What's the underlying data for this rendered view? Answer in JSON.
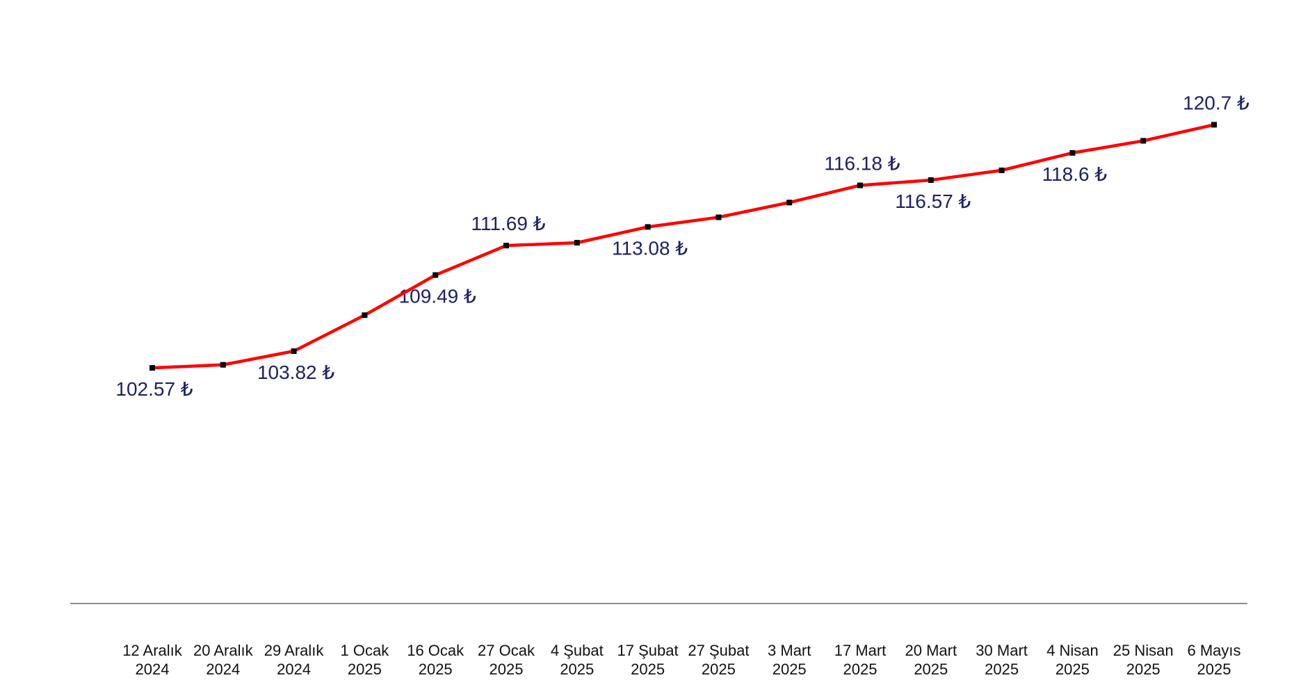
{
  "chart_data": {
    "type": "line",
    "title": "",
    "xlabel": "",
    "ylabel": "",
    "ylim": [
      85,
      130
    ],
    "grid": false,
    "legend": "none",
    "line_color": "#ff0000",
    "marker_color": "#000000",
    "label_color": "#1c2163",
    "axis_color": "#3b3f8f",
    "categories": [
      [
        "12 Aralık",
        "2024"
      ],
      [
        "20 Aralık",
        "2024"
      ],
      [
        "29 Aralık",
        "2024"
      ],
      [
        "1 Ocak",
        "2025"
      ],
      [
        "16 Ocak",
        "2025"
      ],
      [
        "27 Ocak",
        "2025"
      ],
      [
        "4 Şubat",
        "2025"
      ],
      [
        "17 Şubat",
        "2025"
      ],
      [
        "27 Şubat",
        "2025"
      ],
      [
        "3 Mart",
        "2025"
      ],
      [
        "17 Mart",
        "2025"
      ],
      [
        "20 Mart",
        "2025"
      ],
      [
        "30 Mart",
        "2025"
      ],
      [
        "4 Nisan",
        "2025"
      ],
      [
        "25 Nisan",
        "2025"
      ],
      [
        "6 Mayıs",
        "2025"
      ]
    ],
    "series": [
      {
        "values": [
          102.57,
          102.8,
          103.82,
          106.5,
          109.49,
          111.69,
          111.9,
          113.08,
          113.8,
          114.9,
          116.18,
          116.57,
          117.3,
          118.6,
          119.5,
          120.7
        ]
      }
    ],
    "data_labels": [
      {
        "index": 0,
        "text": "102.57 ₺",
        "position": "below"
      },
      {
        "index": 2,
        "text": "103.82 ₺",
        "position": "below"
      },
      {
        "index": 4,
        "text": "109.49 ₺",
        "position": "below"
      },
      {
        "index": 5,
        "text": "111.69 ₺",
        "position": "above"
      },
      {
        "index": 7,
        "text": "113.08 ₺",
        "position": "below"
      },
      {
        "index": 10,
        "text": "116.18 ₺",
        "position": "above"
      },
      {
        "index": 11,
        "text": "116.57 ₺",
        "position": "below"
      },
      {
        "index": 13,
        "text": "118.6 ₺",
        "position": "below"
      },
      {
        "index": 15,
        "text": "120.7 ₺",
        "position": "above"
      }
    ]
  }
}
